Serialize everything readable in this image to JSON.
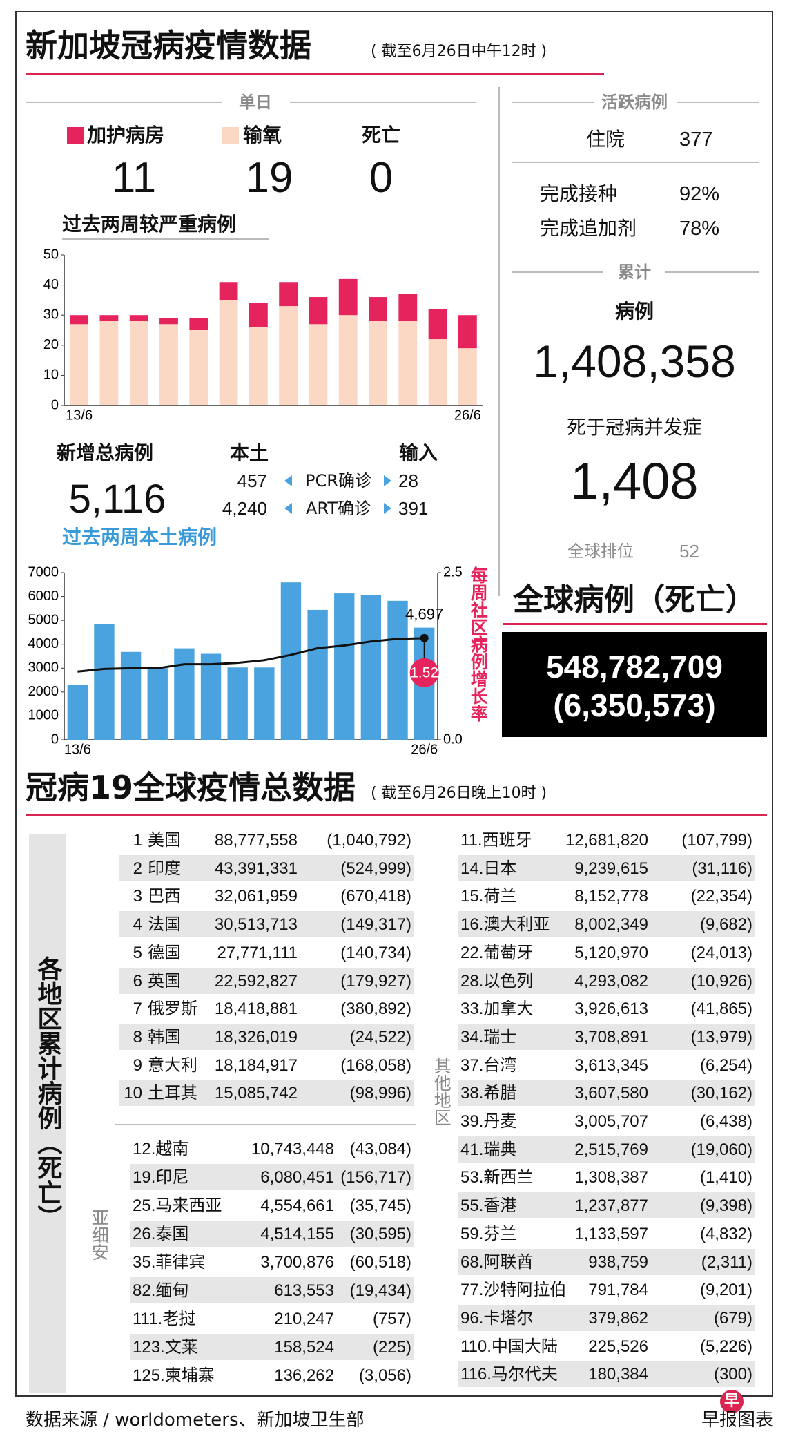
{
  "header": {
    "title": "新加坡冠病疫情数据",
    "subtitle": "( 截至6月26日中午12时 )"
  },
  "single_day": {
    "title": "单日",
    "values": [
      "11",
      "19"
    ],
    "deaths_label": "死亡",
    "deaths": "0"
  },
  "chart_data": [
    {
      "type": "stacked_bar",
      "title": "过去两周较严重病例",
      "categories": [
        "13/6",
        null,
        null,
        null,
        null,
        null,
        null,
        null,
        null,
        null,
        null,
        null,
        null,
        "26/6"
      ],
      "series": [
        {
          "name": "加护病房",
          "color": "#e5245e",
          "values": [
            3,
            2,
            2,
            2,
            4,
            6,
            8,
            8,
            9,
            12,
            8,
            9,
            10,
            11
          ]
        },
        {
          "name": "输氧",
          "color": "#fbd8c4",
          "values": [
            27,
            28,
            28,
            27,
            25,
            35,
            26,
            33,
            27,
            30,
            28,
            28,
            22,
            19
          ]
        }
      ],
      "ylim": [
        0,
        50
      ],
      "yticks": [
        0,
        10,
        20,
        30,
        40,
        50
      ]
    },
    {
      "type": "bar_line",
      "title": "过去两周本土病例",
      "categories": [
        "13/6",
        null,
        null,
        null,
        null,
        null,
        null,
        null,
        null,
        null,
        null,
        null,
        null,
        "26/6"
      ],
      "series": [
        {
          "type": "bar",
          "color": "#4aa3df",
          "values": [
            2300,
            4850,
            3680,
            3000,
            3830,
            3600,
            3030,
            3030,
            6590,
            5440,
            6130,
            6050,
            5820,
            4697
          ],
          "value_labels": [
            null,
            null,
            null,
            null,
            null,
            null,
            null,
            null,
            null,
            null,
            null,
            null,
            null,
            "4,697"
          ]
        },
        {
          "type": "line",
          "color": "#111111",
          "axis": "y2",
          "values": [
            1.02,
            1.06,
            1.07,
            1.07,
            1.13,
            1.13,
            1.15,
            1.19,
            1.27,
            1.37,
            1.41,
            1.47,
            1.51,
            1.52
          ]
        }
      ],
      "ylim": [
        0,
        7000
      ],
      "yticks": [
        0,
        1000,
        2000,
        3000,
        4000,
        5000,
        6000,
        7000
      ],
      "y2lim": [
        0,
        2.5
      ],
      "y2ticks": [
        {
          "value": 0,
          "label": "0.0"
        },
        2.5
      ],
      "y2label": "每周社区病例增长率"
    }
  ],
  "new_cases": {
    "title": "新增总病例",
    "total": "5,116",
    "local_label": "本土",
    "imported_label": "输入",
    "rows": [
      {
        "local": "457",
        "method": "PCR确诊",
        "imported": "28"
      },
      {
        "local": "4,240",
        "method": "ART确诊",
        "imported": "391"
      }
    ]
  },
  "active": {
    "title": "活跃病例",
    "hospitalised_label": "住院",
    "hospitalised": "377",
    "vaccinated_label": "完成接种",
    "vaccinated": "92%",
    "booster_label": "完成追加剂",
    "booster": "78%"
  },
  "cumulative": {
    "title": "累计",
    "cases_label": "病例",
    "cases": "1,408,358",
    "deaths_label": "死于冠病并发症",
    "deaths": "1,408",
    "rank_label": "全球排位",
    "rank": "52"
  },
  "global": {
    "title": "全球病例（死亡）",
    "cases": "548,782,709",
    "deaths": "(6,350,573)"
  },
  "world": {
    "title": "冠病19全球疫情总数据",
    "subtitle": "( 截至6月26日晚上10时 )",
    "side_label": "各地区累计病例（死亡）",
    "top10": [
      [
        "1",
        "美国",
        "88,777,558",
        "(1,040,792)"
      ],
      [
        "2",
        "印度",
        "43,391,331",
        "(524,999)"
      ],
      [
        "3",
        "巴西",
        "32,061,959",
        "(670,418)"
      ],
      [
        "4",
        "法国",
        "30,513,713",
        "(149,317)"
      ],
      [
        "5",
        "德国",
        "27,771,111",
        "(140,734)"
      ],
      [
        "6",
        "英国",
        "22,592,827",
        "(179,927)"
      ],
      [
        "7",
        "俄罗斯",
        "18,418,881",
        "(380,892)"
      ],
      [
        "8",
        "韩国",
        "18,326,019",
        "(24,522)"
      ],
      [
        "9",
        "意大利",
        "18,184,917",
        "(168,058)"
      ],
      [
        "10",
        "土耳其",
        "15,085,742",
        "(98,996)"
      ]
    ],
    "asean_label": "亚细安",
    "asean": [
      [
        "12.越南",
        "10,743,448",
        "(43,084)"
      ],
      [
        "19.印尼",
        "6,080,451",
        "(156,717)"
      ],
      [
        "25.马来西亚",
        "4,554,661",
        "(35,745)"
      ],
      [
        "26.泰国",
        "4,514,155",
        "(30,595)"
      ],
      [
        "35.菲律宾",
        "3,700,876",
        "(60,518)"
      ],
      [
        "82.缅甸",
        "613,553",
        "(19,434)"
      ],
      [
        "111.老挝",
        "210,247",
        "(757)"
      ],
      [
        "123.文莱",
        "158,524",
        "(225)"
      ],
      [
        "125.柬埔寨",
        "136,262",
        "(3,056)"
      ]
    ],
    "others_label": "其他地区",
    "others": [
      [
        "11.西班牙",
        "12,681,820",
        "(107,799)"
      ],
      [
        "14.日本",
        "9,239,615",
        "(31,116)"
      ],
      [
        "15.荷兰",
        "8,152,778",
        "(22,354)"
      ],
      [
        "16.澳大利亚",
        "8,002,349",
        "(9,682)"
      ],
      [
        "22.葡萄牙",
        "5,120,970",
        "(24,013)"
      ],
      [
        "28.以色列",
        "4,293,082",
        "(10,926)"
      ],
      [
        "33.加拿大",
        "3,926,613",
        "(41,865)"
      ],
      [
        "34.瑞士",
        "3,708,891",
        "(13,979)"
      ],
      [
        "37.台湾",
        "3,613,345",
        "(6,254)"
      ],
      [
        "38.希腊",
        "3,607,580",
        "(30,162)"
      ],
      [
        "39.丹麦",
        "3,005,707",
        "(6,438)"
      ],
      [
        "41.瑞典",
        "2,515,769",
        "(19,060)"
      ],
      [
        "53.新西兰",
        "1,308,387",
        "(1,410)"
      ],
      [
        "55.香港",
        "1,237,877",
        "(9,398)"
      ],
      [
        "59.芬兰",
        "1,133,597",
        "(4,832)"
      ],
      [
        "68.阿联酋",
        "938,759",
        "(2,311)"
      ],
      [
        "77.沙特阿拉伯",
        "791,784",
        "(9,201)"
      ],
      [
        "96.卡塔尔",
        "379,862",
        "(679)"
      ],
      [
        "110.中国大陆",
        "225,526",
        "(5,226)"
      ],
      [
        "116.马尔代夫",
        "180,384",
        "(300)"
      ]
    ]
  },
  "footer": {
    "source": "数据来源 / worldometers、新加坡卫生部",
    "credit": "早报图表",
    "logo": "早"
  }
}
